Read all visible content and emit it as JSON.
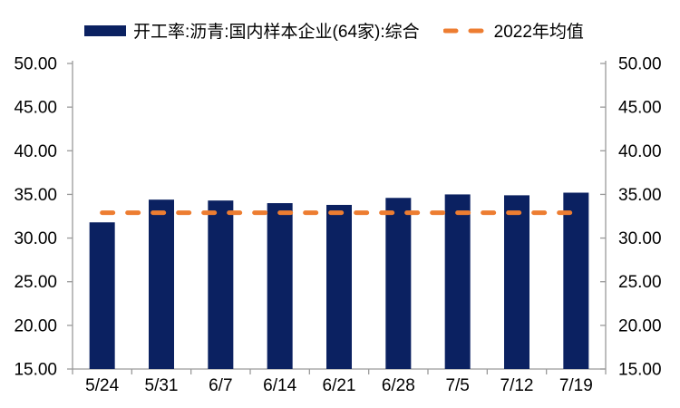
{
  "legend": {
    "series1_label": "开工率:沥青:国内样本企业(64家):综合",
    "series2_label": "2022年均值"
  },
  "colors": {
    "bar": "#0b2161",
    "avg_line": "#ed7d31",
    "axis": "#9a9a9a",
    "text": "#000000",
    "background": "#ffffff"
  },
  "chart_data": {
    "type": "bar",
    "title": "",
    "xlabel": "",
    "ylabel": "",
    "categories": [
      "5/24",
      "5/31",
      "6/7",
      "6/14",
      "6/21",
      "6/28",
      "7/5",
      "7/12",
      "7/19"
    ],
    "series": [
      {
        "name": "开工率:沥青:国内样本企业(64家):综合",
        "type": "bar",
        "values": [
          31.8,
          34.4,
          34.3,
          34.0,
          33.8,
          34.6,
          35.0,
          34.9,
          35.2
        ]
      },
      {
        "name": "2022年均值",
        "type": "line",
        "line_style": "dashed",
        "constant_value": 32.9,
        "values": [
          32.9,
          32.9,
          32.9,
          32.9,
          32.9,
          32.9,
          32.9,
          32.9,
          32.9
        ]
      }
    ],
    "ylim": [
      15,
      50
    ],
    "ytick_step": 5,
    "ytick_format": "two-decimals",
    "ytick_labels": [
      "15.00",
      "20.00",
      "25.00",
      "30.00",
      "35.00",
      "40.00",
      "45.00",
      "50.00"
    ],
    "dual_y_axis": true,
    "grid": false,
    "legend_position": "top"
  }
}
